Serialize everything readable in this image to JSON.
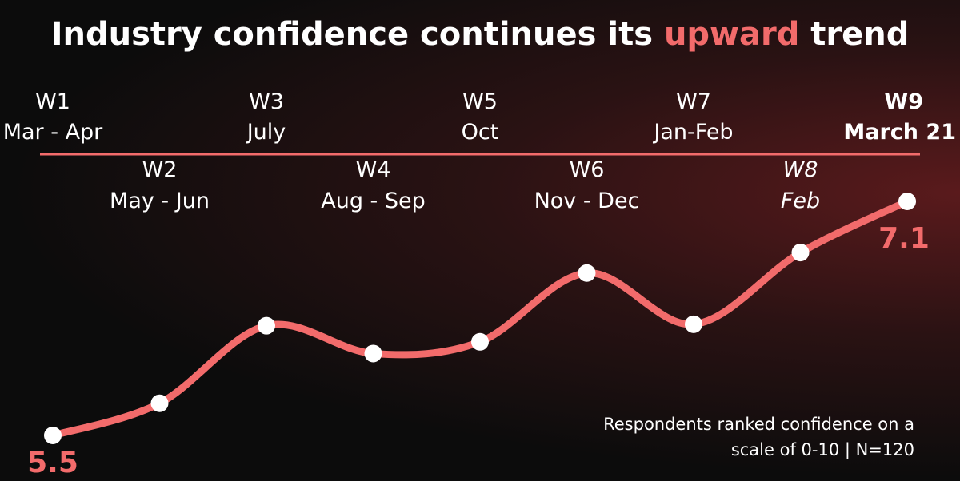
{
  "chart_data": {
    "type": "line",
    "title_parts": [
      "Industry confidence continues its",
      "upward",
      "trend"
    ],
    "categories": [
      "W1",
      "W2",
      "W3",
      "W4",
      "W5",
      "W6",
      "W7",
      "W8",
      "W9"
    ],
    "periods": [
      "Mar - Apr",
      "May - Jun",
      "July",
      "Aug - Sep",
      "Oct",
      "Nov - Dec",
      "Jan-Feb",
      "Feb",
      "March 21"
    ],
    "values": [
      5.5,
      5.72,
      6.25,
      6.06,
      6.14,
      6.61,
      6.26,
      6.75,
      7.1
    ],
    "color": "#f26b6b",
    "highlight_color": "#f26b6b",
    "note": [
      "Respondents ranked confidence on a",
      "scale of 0-10 | N=120"
    ]
  }
}
